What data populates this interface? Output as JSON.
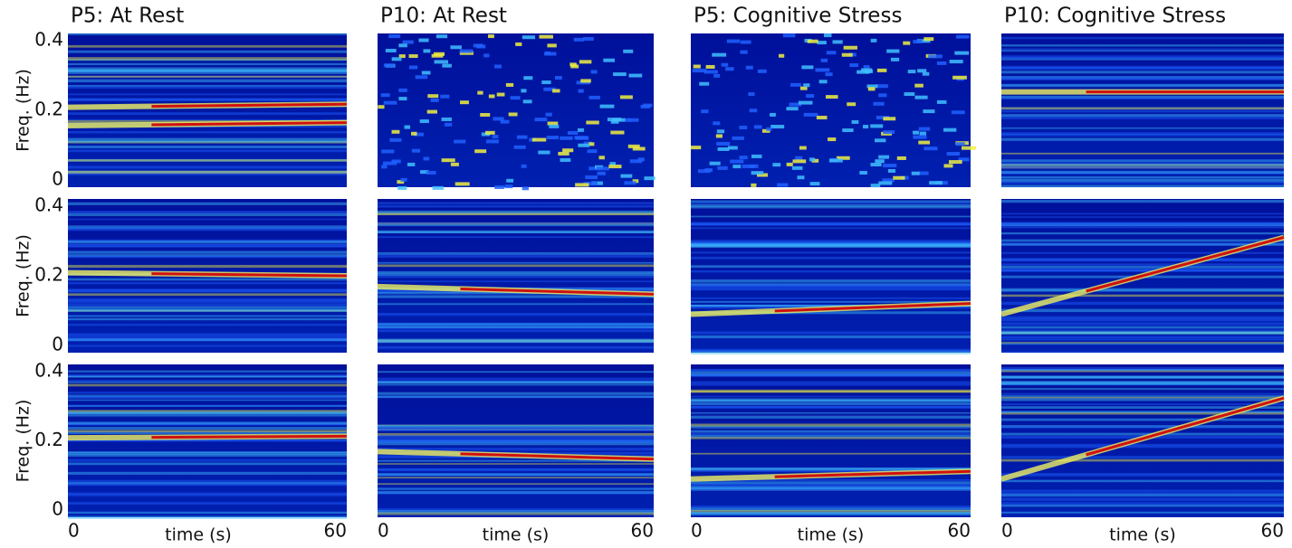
{
  "figure": {
    "columns": [
      "P5: At Rest",
      "P10: At Rest",
      "P5: Cognitive Stress",
      "P10: Cognitive Stress"
    ],
    "y_label": "Freq. (Hz)",
    "x_label": "time (s)",
    "ylim": [
      0,
      0.4
    ],
    "yticks": [
      0,
      0.2,
      0.4
    ],
    "xlim": [
      0,
      60
    ],
    "xticks": [
      0,
      60
    ]
  }
}
